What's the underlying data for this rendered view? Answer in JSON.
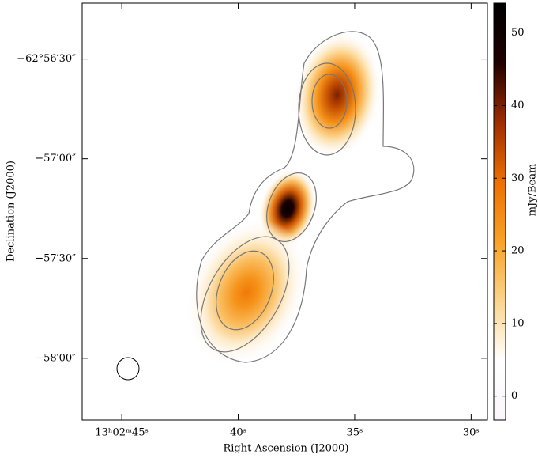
{
  "chart_data": {
    "type": "image",
    "x_label": "Right Ascension (J2000)",
    "y_label": "Declination (J2000)",
    "colorbar_label": "mJy/Beam",
    "xlim": [
      46.7,
      29.3
    ],
    "xticks": [
      {
        "value": 45,
        "label": "13ʰ02ᵐ45ˢ"
      },
      {
        "value": 40,
        "label": "40ˢ"
      },
      {
        "value": 35,
        "label": "35ˢ"
      },
      {
        "value": 30,
        "label": "30ˢ"
      }
    ],
    "ylim": [
      -58.31,
      -56.22
    ],
    "yticks": [
      {
        "value": -56.5,
        "label": "−62°56′30″"
      },
      {
        "value": -57.0,
        "label": "−57′00″"
      },
      {
        "value": -57.5,
        "label": "−57′30″"
      },
      {
        "value": -58.0,
        "label": "−58′00″"
      }
    ],
    "clim": [
      -3.3,
      54.1
    ],
    "cticks": [
      0,
      10,
      20,
      30,
      40,
      50
    ],
    "colormap": [
      "#fbf6fb",
      "#ffffff",
      "#fbd48c",
      "#f8a226",
      "#ee7000",
      "#9e2d00",
      "#200000",
      "#000000"
    ],
    "sources": {
      "x": [
        35.75,
        37.88,
        39.64
      ],
      "y": [
        -56.68,
        -57.25,
        -57.67
      ],
      "values": [
        40,
        54,
        28
      ]
    }
  }
}
